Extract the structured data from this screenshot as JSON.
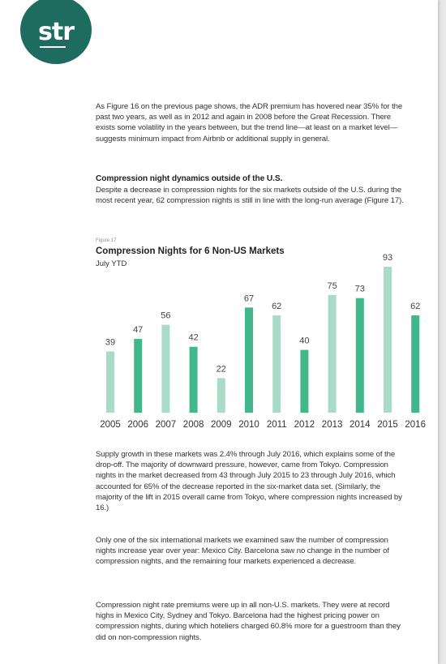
{
  "logo": {
    "text": "str"
  },
  "paragraphs": {
    "intro": "As Figure 16 on the previous page shows, the ADR premium has hovered near 35% for the past two years, as well as in 2012 and again in 2008 before the Great Recession. There exists some volatility in the years between, but the trend line—at least on a market level—suggests minimum impact from Airbnb or additional supply in general.",
    "heading": "Compression night dynamics outside of the U.S.",
    "after_heading": "Despite a decrease in compression nights for the six markets outside of the U.S. during the most recent year, 62 compression nights is still in line with the long-run average (Figure 17).",
    "supply": "Supply growth in these markets was 2.4% through July 2016, which explains some of the drop-off. The majority of downward pressure, however, came from Tokyo. Compression nights in the market decreased from 43 through July 2015 to 23 through July 2016, which accounted for 65% of the decrease reported in the six-market data set. (Similarly, the majority of the lift in 2015 overall came from Tokyo, where compression nights increased by 16.)",
    "international": "Only one of the six international markets we examined saw the number of compression nights increase year over year: Mexico City. Barcelona saw no change in the number of compression nights, and the remaining four markets experienced a decrease.",
    "premiums": "Compression night rate premiums were up in all non-U.S. markets. They were at record highs in Mexico City, Sydney and Tokyo. Barcelona had the highest pricing power on compression nights, during which hoteliers charged 60.8% more for a guestroom than they did on non-compression nights."
  },
  "figure": {
    "label": "Figure 17"
  },
  "chart_data": {
    "type": "bar",
    "title": "Compression Nights for 6 Non-US Markets",
    "subtitle": "July YTD",
    "categories": [
      "2005",
      "2006",
      "2007",
      "2008",
      "2009",
      "2010",
      "2011",
      "2012",
      "2013",
      "2014",
      "2015",
      "2016"
    ],
    "values": [
      39,
      47,
      56,
      42,
      22,
      67,
      62,
      40,
      75,
      73,
      93,
      62
    ],
    "ylim": [
      0,
      93
    ],
    "grid": false,
    "legend": "none",
    "colors": {
      "light": "#a8dcc6",
      "dark": "#42b88a"
    },
    "bar_colors": [
      "light",
      "dark",
      "light",
      "dark",
      "light",
      "dark",
      "light",
      "dark",
      "light",
      "dark",
      "light",
      "dark"
    ]
  }
}
